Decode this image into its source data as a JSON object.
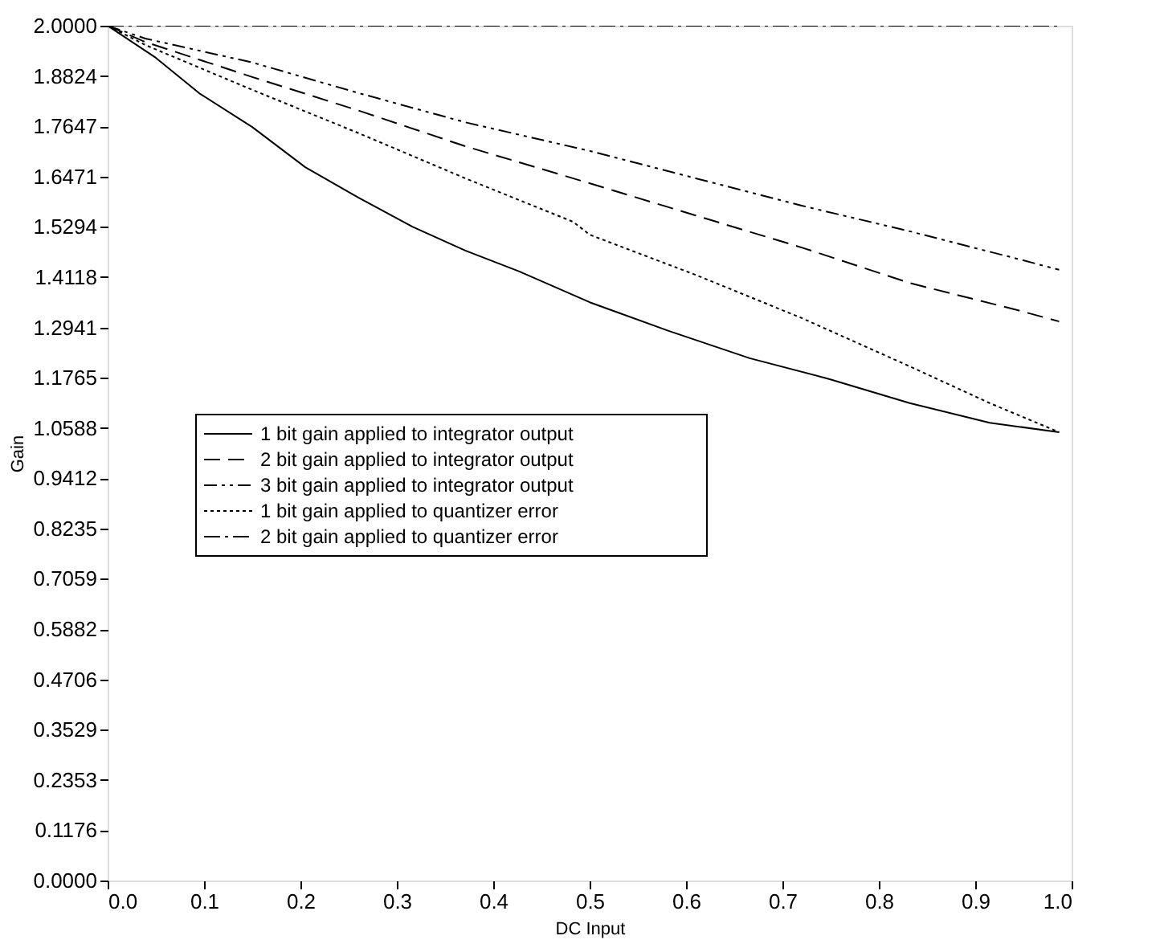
{
  "chart_data": {
    "type": "line",
    "xlabel": "DC Input",
    "ylabel": "Gain",
    "xlim": [
      0,
      1
    ],
    "ylim": [
      0,
      2
    ],
    "xticks": [
      {
        "value": 0,
        "label": "0.0"
      },
      {
        "value": 0.1,
        "label": "0.1"
      },
      {
        "value": 0.2,
        "label": "0.2"
      },
      {
        "value": 0.3,
        "label": "0.3"
      },
      {
        "value": 0.4,
        "label": "0.4"
      },
      {
        "value": 0.5,
        "label": "0.5"
      },
      {
        "value": 0.6,
        "label": "0.6"
      },
      {
        "value": 0.7,
        "label": "0.7"
      },
      {
        "value": 0.8,
        "label": "0.8"
      },
      {
        "value": 0.9,
        "label": "0.9"
      },
      {
        "value": 1,
        "label": "1.0"
      }
    ],
    "yticks": [
      {
        "value": 0,
        "label": "0.0000"
      },
      0.1176,
      0.2353,
      0.3529,
      0.4706,
      0.5882,
      0.7059,
      0.8235,
      0.9412,
      1.0588,
      1.1765,
      1.2941,
      1.4118,
      1.5294,
      1.6471,
      1.7647,
      1.8824,
      {
        "value": 2,
        "label": "2.0000"
      }
    ],
    "grid": false,
    "legend": "left",
    "series": [
      {
        "name": "1 bit  gain applied to integrator output",
        "color": "#000000",
        "line_style": "solid",
        "x": [
          0,
          0.05,
          0.095,
          0.15,
          0.205,
          0.26,
          0.316,
          0.371,
          0.427,
          0.5,
          0.582,
          0.666,
          0.749,
          0.832,
          0.915,
          0.987
        ],
        "values": [
          2.0,
          1.925,
          1.842,
          1.763,
          1.669,
          1.598,
          1.53,
          1.474,
          1.425,
          1.353,
          1.286,
          1.222,
          1.173,
          1.117,
          1.071,
          1.049
        ]
      },
      {
        "name": "2 bit  gain applied to integrator output",
        "color": "#000000",
        "line_style": "dashed",
        "x": [
          0,
          0.039,
          0.15,
          0.261,
          0.371,
          0.499,
          0.61,
          0.72,
          0.832,
          0.943,
          0.987
        ],
        "values": [
          2.0,
          1.962,
          1.88,
          1.801,
          1.718,
          1.632,
          1.556,
          1.481,
          1.398,
          1.335,
          1.308
        ]
      },
      {
        "name": "3 bit  gain applied to integrator output",
        "color": "#000000",
        "line_style": "dashdotdot",
        "x": [
          0,
          0.039,
          0.15,
          0.261,
          0.371,
          0.5,
          0.61,
          0.72,
          0.832,
          0.943,
          0.987
        ],
        "values": [
          2.0,
          1.97,
          1.914,
          1.842,
          1.774,
          1.707,
          1.643,
          1.579,
          1.519,
          1.455,
          1.429
        ]
      },
      {
        "name": "1 bit  gain applied to quantizer error",
        "color": "#000000",
        "line_style": "dotted",
        "x": [
          0,
          0.039,
          0.15,
          0.261,
          0.371,
          0.483,
          0.5,
          0.61,
          0.72,
          0.832,
          0.915,
          0.987
        ],
        "values": [
          2.0,
          1.955,
          1.85,
          1.748,
          1.643,
          1.541,
          1.511,
          1.417,
          1.316,
          1.203,
          1.117,
          1.049
        ]
      },
      {
        "name": "2 bit  gain applied to quantizer error",
        "color": "#000000",
        "line_style": "dashdot",
        "x": [
          0,
          0.987
        ],
        "values": [
          2.0,
          2.0
        ]
      }
    ]
  }
}
